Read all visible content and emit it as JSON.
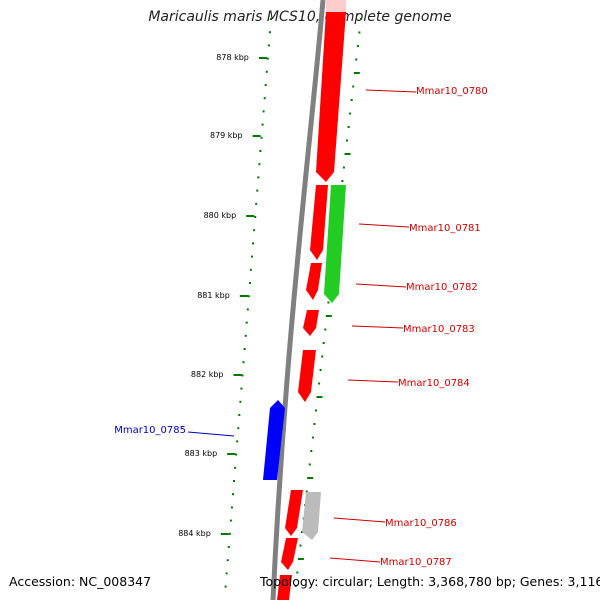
{
  "title": "Maricaulis maris MCS10, complete genome",
  "footer": {
    "accession": "Accession: NC_008347",
    "stats": "Topology: circular; Length: 3,368,780 bp; Genes: 3,116"
  },
  "colors": {
    "forward_gene": "#ff0000",
    "reverse_gene": "#0000ff",
    "secondary_gene": "#22cc22",
    "pseudo_gene": "#bbbbbb",
    "backbone": "#808080",
    "scale_ticks": "#007700",
    "forward_label": "#cc0000",
    "reverse_label": "#0000bb"
  },
  "scale_labels": [
    "878 kbp",
    "879 kbp",
    "880 kbp",
    "881 kbp",
    "882 kbp",
    "883 kbp",
    "884 kbp"
  ],
  "genes": [
    {
      "name": "Mmar10_0780",
      "strand": "forward",
      "type": "forward"
    },
    {
      "name": "Mmar10_0781",
      "strand": "forward",
      "type": "forward"
    },
    {
      "name": "Mmar10_0782",
      "strand": "forward",
      "type": "forward"
    },
    {
      "name": "Mmar10_0783",
      "strand": "forward",
      "type": "forward"
    },
    {
      "name": "Mmar10_0784",
      "strand": "forward",
      "type": "forward"
    },
    {
      "name": "Mmar10_0785",
      "strand": "reverse",
      "type": "reverse"
    },
    {
      "name": "Mmar10_0786",
      "strand": "forward",
      "type": "forward"
    },
    {
      "name": "Mmar10_0787",
      "strand": "forward",
      "type": "forward"
    }
  ]
}
